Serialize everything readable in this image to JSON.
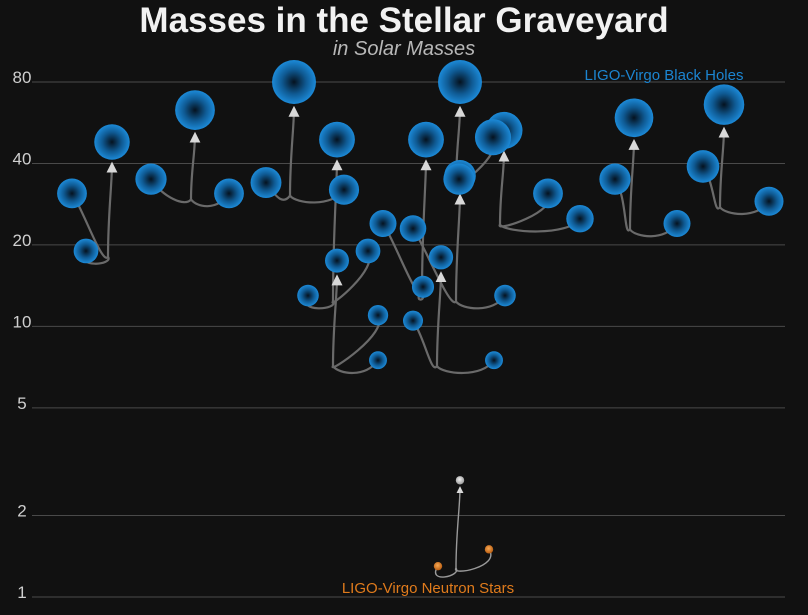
{
  "chart_data": {
    "type": "scatter",
    "title": "Masses in the Stellar Graveyard",
    "subtitle": "in Solar Masses",
    "yscale": "log",
    "ylim": [
      1,
      100
    ],
    "yticks": [
      {
        "value": 1,
        "label": "1"
      },
      {
        "value": 2,
        "label": "2"
      },
      {
        "value": 5,
        "label": "5"
      },
      {
        "value": 10,
        "label": "10"
      },
      {
        "value": 20,
        "label": "20"
      },
      {
        "value": 40,
        "label": "40"
      },
      {
        "value": 80,
        "label": "80"
      }
    ],
    "grid": true,
    "series": [
      {
        "name": "LIGO-Virgo Black Holes",
        "color": "#1c85d1",
        "mergers": [
          {
            "primary": 31,
            "secondary": 19,
            "final": 48
          },
          {
            "primary": 35,
            "secondary": 31,
            "final": 63
          },
          {
            "primary": 34,
            "secondary": 32,
            "final": 80
          },
          {
            "primary": 19,
            "secondary": 13,
            "final": 49
          },
          {
            "primary": 24,
            "secondary": 14,
            "final": 49
          },
          {
            "primary": 11,
            "secondary": 7.5,
            "final": 17.5
          },
          {
            "primary": 23,
            "secondary": 13,
            "final": 36
          },
          {
            "primary": 31,
            "secondary": 25,
            "final": 53
          },
          {
            "primary": 35,
            "secondary": 24,
            "final": 59
          },
          {
            "primary": 39,
            "secondary": 29,
            "final": 66
          },
          {
            "primary": 10.5,
            "secondary": 7.5,
            "final": 18
          },
          {
            "primary": 50,
            "secondary": 35,
            "final": 80
          }
        ]
      },
      {
        "name": "LIGO-Virgo Neutron Stars",
        "color": "#e07b1c",
        "mergers": [
          {
            "primary": 1.5,
            "secondary": 1.3,
            "final": 2.7
          }
        ]
      }
    ],
    "legend": "black holes label top-right; neutron stars label bottom-center"
  }
}
